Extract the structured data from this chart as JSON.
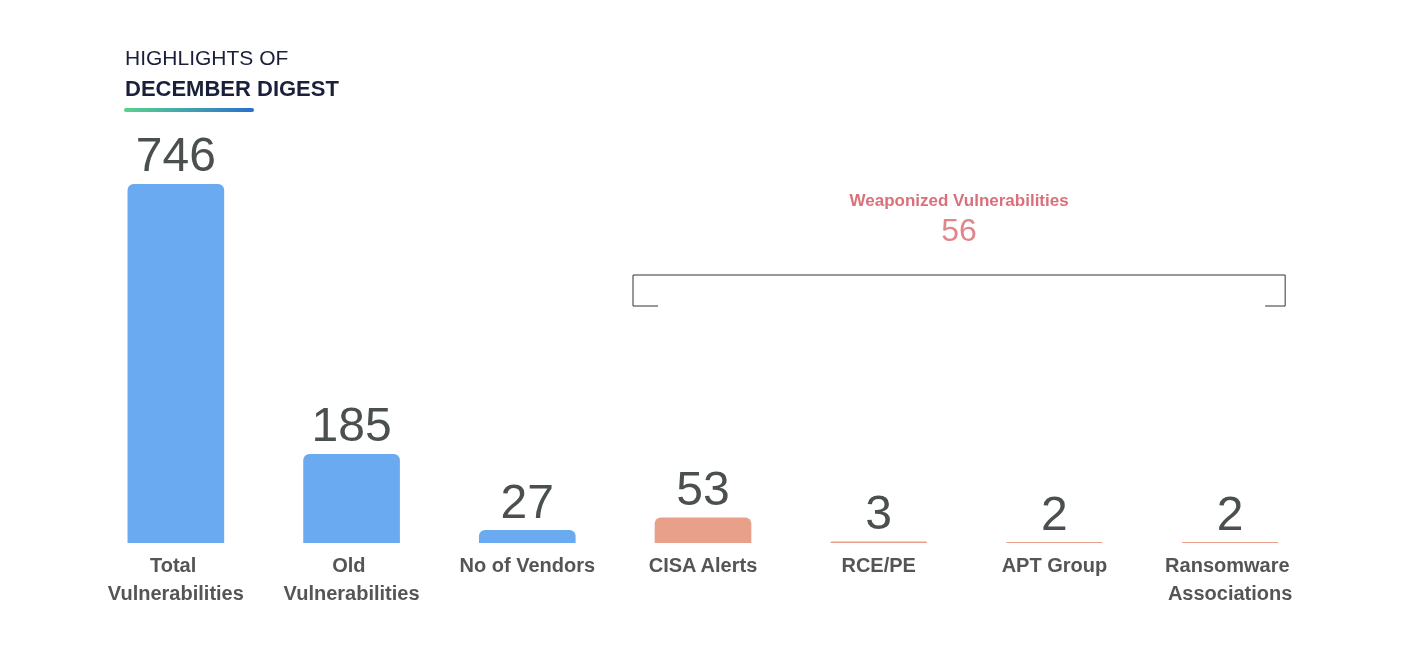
{
  "chart_data": {
    "type": "bar",
    "title": "HIGHLIGHTS OF",
    "subtitle": "DECEMBER DIGEST",
    "categories": [
      "Total Vulnerabilities",
      "Old Vulnerabilities",
      "No of Vendors",
      "CISA Alerts",
      "RCE/PE",
      "APT Group",
      "Ransomware Associations"
    ],
    "values": [
      746,
      185,
      27,
      53,
      3,
      2,
      2
    ],
    "colors": [
      "#6aaaf0",
      "#6aaaf0",
      "#6aaaf0",
      "#e8a08a",
      "#e8a08a",
      "#e8a08a",
      "#e8a08a"
    ],
    "data_labels": true,
    "annotations": [
      "Weaponized Vulnerabilities",
      "56"
    ]
  }
}
